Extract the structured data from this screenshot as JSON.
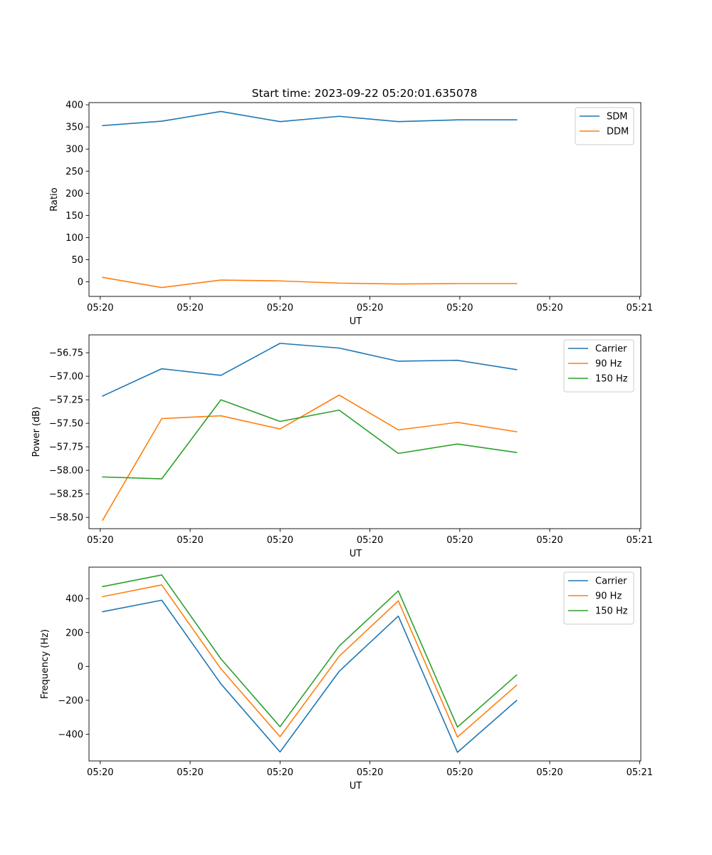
{
  "figure_title": "Start time: 2023-09-22 05:20:01.635078",
  "colors": {
    "blue": "#1f77b4",
    "orange": "#ff7f0e",
    "green": "#2ca02c",
    "axis": "#000000",
    "legend_border": "#cccccc"
  },
  "chart_data": [
    {
      "type": "line",
      "title": "Start time: 2023-09-22 05:20:01.635078",
      "xlabel": "UT",
      "ylabel": "Ratio",
      "xlim": [
        -0.23,
        9.1
      ],
      "x_ticks": [
        -0.04,
        1.48,
        3.0,
        4.52,
        6.04,
        7.56,
        9.08
      ],
      "x_tick_labels": [
        "05:20",
        "05:20",
        "05:20",
        "05:20",
        "05:20",
        "05:20",
        "05:21"
      ],
      "ylim": [
        -33,
        405
      ],
      "y_ticks": [
        0,
        50,
        100,
        150,
        200,
        250,
        300,
        350,
        400
      ],
      "y_tick_labels": [
        "0",
        "50",
        "100",
        "150",
        "200",
        "250",
        "300",
        "350",
        "400"
      ],
      "legend": "top-right",
      "x": [
        0,
        1,
        2,
        3,
        4,
        5,
        6,
        7
      ],
      "series": [
        {
          "name": "SDM",
          "color": "#1f77b4",
          "values": [
            353,
            363,
            385,
            362,
            374,
            362,
            366,
            366
          ]
        },
        {
          "name": "DDM",
          "color": "#ff7f0e",
          "values": [
            10,
            -13,
            4,
            2,
            -3,
            -5,
            -4,
            -4
          ]
        }
      ]
    },
    {
      "type": "line",
      "title": "",
      "xlabel": "UT",
      "ylabel": "Power (dB)",
      "xlim": [
        -0.23,
        9.1
      ],
      "x_ticks": [
        -0.04,
        1.48,
        3.0,
        4.52,
        6.04,
        7.56,
        9.08
      ],
      "x_tick_labels": [
        "05:20",
        "05:20",
        "05:20",
        "05:20",
        "05:20",
        "05:20",
        "05:21"
      ],
      "ylim": [
        -58.62,
        -56.56
      ],
      "y_ticks": [
        -58.5,
        -58.25,
        -58.0,
        -57.75,
        -57.5,
        -57.25,
        -57.0,
        -56.75
      ],
      "y_tick_labels": [
        "−58.50",
        "−58.25",
        "−58.00",
        "−57.75",
        "−57.50",
        "−57.25",
        "−57.00",
        "−56.75"
      ],
      "legend": "top-right",
      "x": [
        0,
        1,
        2,
        3,
        4,
        5,
        6,
        7
      ],
      "series": [
        {
          "name": "Carrier",
          "color": "#1f77b4",
          "values": [
            -57.21,
            -56.92,
            -56.99,
            -56.65,
            -56.7,
            -56.84,
            -56.83,
            -56.93
          ]
        },
        {
          "name": "90 Hz",
          "color": "#ff7f0e",
          "values": [
            -58.53,
            -57.45,
            -57.42,
            -57.56,
            -57.2,
            -57.57,
            -57.49,
            -57.59
          ]
        },
        {
          "name": "150 Hz",
          "color": "#2ca02c",
          "values": [
            -58.07,
            -58.09,
            -57.25,
            -57.48,
            -57.36,
            -57.82,
            -57.72,
            -57.81
          ]
        }
      ]
    },
    {
      "type": "line",
      "title": "",
      "xlabel": "UT",
      "ylabel": "Frequency (Hz)",
      "xlim": [
        -0.23,
        9.1
      ],
      "x_ticks": [
        -0.04,
        1.48,
        3.0,
        4.52,
        6.04,
        7.56,
        9.08
      ],
      "x_tick_labels": [
        "05:20",
        "05:20",
        "05:20",
        "05:20",
        "05:20",
        "05:20",
        "05:21"
      ],
      "ylim": [
        -558,
        586
      ],
      "y_ticks": [
        -400,
        -200,
        0,
        200,
        400
      ],
      "y_tick_labels": [
        "−400",
        "−200",
        "0",
        "200",
        "400"
      ],
      "legend": "top-right",
      "x": [
        0,
        1,
        2,
        3,
        4,
        5,
        6,
        7
      ],
      "series": [
        {
          "name": "Carrier",
          "color": "#1f77b4",
          "values": [
            323,
            391,
            -103,
            -505,
            -29,
            297,
            -507,
            -201
          ]
        },
        {
          "name": "90 Hz",
          "color": "#ff7f0e",
          "values": [
            412,
            481,
            -14,
            -415,
            60,
            387,
            -417,
            -111
          ]
        },
        {
          "name": "150 Hz",
          "color": "#2ca02c",
          "values": [
            471,
            540,
            45,
            -356,
            120,
            446,
            -358,
            -51
          ]
        }
      ]
    }
  ]
}
